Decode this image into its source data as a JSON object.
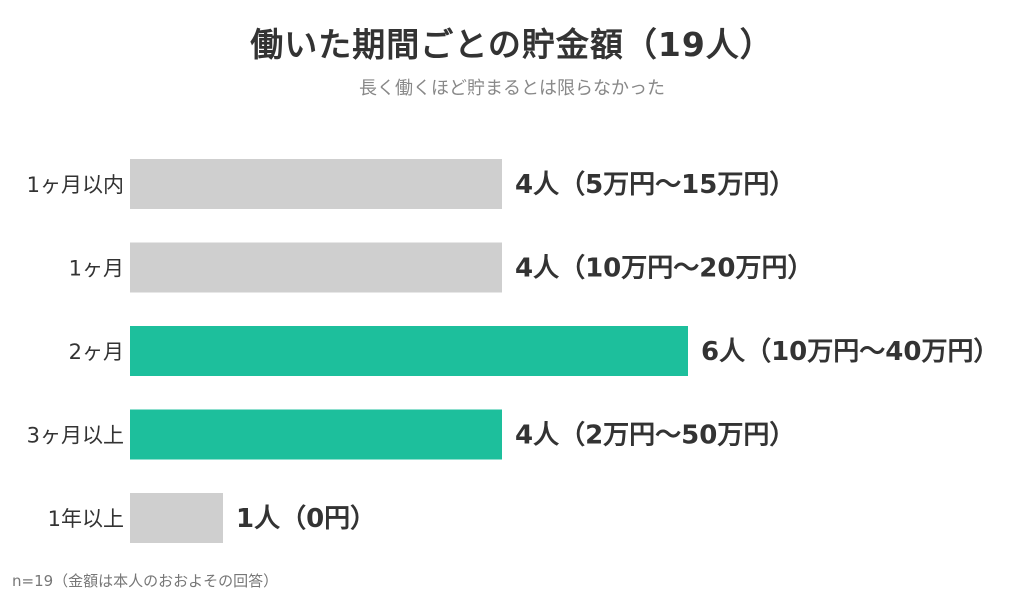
{
  "chart_data": {
    "type": "bar",
    "orientation": "horizontal",
    "title": "働いた期間ごとの貯金額（19人）",
    "subtitle": "長く働くほど貯まるとは限らなかった",
    "categories": [
      "1ヶ月以内",
      "1ヶ月",
      "2ヶ月",
      "3ヶ月以上",
      "1年以上"
    ],
    "values": [
      4,
      4,
      6,
      4,
      1
    ],
    "value_labels": [
      "4人（5万円〜15万円）",
      "4人（10万円〜20万円）",
      "6人（10万円〜40万円）",
      "4人（2万円〜50万円）",
      "1人（0円）"
    ],
    "bar_colors": [
      "#cfcfcf",
      "#cfcfcf",
      "#1dbf9c",
      "#1dbf9c",
      "#cfcfcf"
    ],
    "xlim": [
      0,
      6
    ],
    "grid": false,
    "legend": "none"
  },
  "footnote": "n=19（金額は本人のおおよその回答）"
}
